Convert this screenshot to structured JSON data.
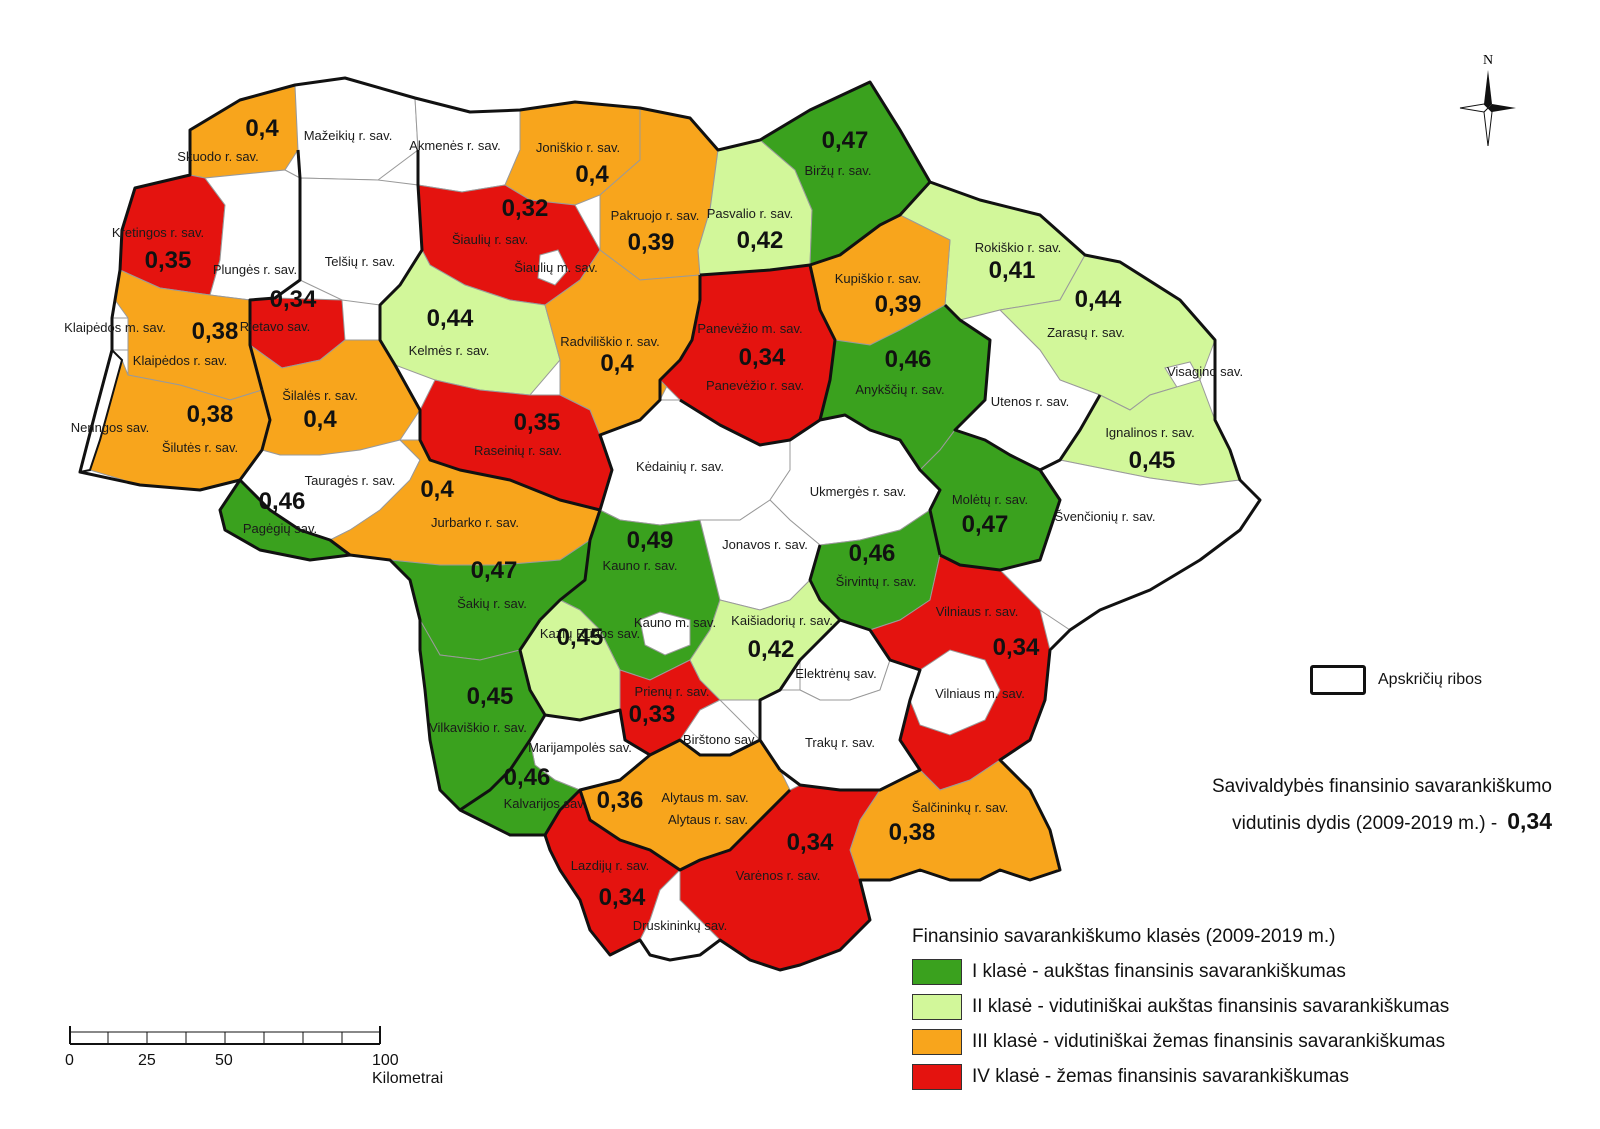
{
  "class_colors": {
    "I": "#3aa11e",
    "II": "#d2f79a",
    "III": "#f8a51c",
    "IV": "#e4130f",
    "none": "#ffffff"
  },
  "municipalities": [
    {
      "id": "skuodo",
      "name": "Skuodo r. sav.",
      "value": "0,4",
      "class": "III"
    },
    {
      "id": "mazeikiu",
      "name": "Mažeikių r. sav.",
      "value": "",
      "class": "none"
    },
    {
      "id": "akmenes",
      "name": "Akmenės r. sav.",
      "value": "",
      "class": "none"
    },
    {
      "id": "joniskio",
      "name": "Joniškio r. sav.",
      "value": "0,4",
      "class": "III"
    },
    {
      "id": "pakruojo",
      "name": "Pakruojo r. sav.",
      "value": "0,39",
      "class": "III"
    },
    {
      "id": "pasvalio",
      "name": "Pasvalio r. sav.",
      "value": "0,42",
      "class": "II"
    },
    {
      "id": "birzu",
      "name": "Biržų r. sav.",
      "value": "0,47",
      "class": "I"
    },
    {
      "id": "rokiskio",
      "name": "Rokiškio r. sav.",
      "value": "0,41",
      "class": "II"
    },
    {
      "id": "kupiskio",
      "name": "Kupiškio r. sav.",
      "value": "0,39",
      "class": "III"
    },
    {
      "id": "zarasu",
      "name": "Zarasų r. sav.",
      "value": "0,44",
      "class": "II"
    },
    {
      "id": "visagino",
      "name": "Visagino sav.",
      "value": "",
      "class": "none"
    },
    {
      "id": "kretingos",
      "name": "Kretingos r. sav.",
      "value": "0,35",
      "class": "IV"
    },
    {
      "id": "plunges",
      "name": "Plungės r. sav.",
      "value": "",
      "class": "none"
    },
    {
      "id": "telsiu",
      "name": "Telšių r. sav.",
      "value": "",
      "class": "none"
    },
    {
      "id": "siauliu_r",
      "name": "Šiaulių r. sav.",
      "value": "0,32",
      "class": "IV"
    },
    {
      "id": "siauliu_m",
      "name": "Šiaulių m. sav.",
      "value": "",
      "class": "none"
    },
    {
      "id": "rietavo",
      "name": "Rietavo sav.",
      "value": "0,34",
      "class": "IV"
    },
    {
      "id": "klaipedos_m",
      "name": "Klaipėdos m. sav.",
      "value": "",
      "class": "none"
    },
    {
      "id": "klaipedos_r",
      "name": "Klaipėdos r. sav.",
      "value": "0,38",
      "class": "III"
    },
    {
      "id": "kelmes",
      "name": "Kelmės r. sav.",
      "value": "0,44",
      "class": "II"
    },
    {
      "id": "radviliskio",
      "name": "Radviliškio r. sav.",
      "value": "0,4",
      "class": "III"
    },
    {
      "id": "panevezio_m",
      "name": "Panevėžio m. sav.",
      "value": "",
      "class": "none"
    },
    {
      "id": "panevezio_r",
      "name": "Panevėžio r. sav.",
      "value": "0,34",
      "class": "IV"
    },
    {
      "id": "anyksciu",
      "name": "Anykščių r. sav.",
      "value": "0,46",
      "class": "I"
    },
    {
      "id": "utenos",
      "name": "Utenos r. sav.",
      "value": "",
      "class": "none"
    },
    {
      "id": "ignalinos",
      "name": "Ignalinos r. sav.",
      "value": "0,45",
      "class": "II"
    },
    {
      "id": "neringos",
      "name": "Neringos sav.",
      "value": "",
      "class": "none"
    },
    {
      "id": "silutes",
      "name": "Šilutės r. sav.",
      "value": "0,38",
      "class": "III"
    },
    {
      "id": "silales",
      "name": "Šilalės r. sav.",
      "value": "0,4",
      "class": "III"
    },
    {
      "id": "raseiniu",
      "name": "Raseinių r. sav.",
      "value": "0,35",
      "class": "IV"
    },
    {
      "id": "kedainiu",
      "name": "Kėdainių r. sav.",
      "value": "",
      "class": "none"
    },
    {
      "id": "ukmerges",
      "name": "Ukmergės r. sav.",
      "value": "",
      "class": "none"
    },
    {
      "id": "moletu",
      "name": "Molėtų r. sav.",
      "value": "0,47",
      "class": "I"
    },
    {
      "id": "svencioniu",
      "name": "Švenčionių r. sav.",
      "value": "",
      "class": "none"
    },
    {
      "id": "taurages",
      "name": "Tauragės r. sav.",
      "value": "",
      "class": "none"
    },
    {
      "id": "jurbarko",
      "name": "Jurbarko r. sav.",
      "value": "0,4",
      "class": "III"
    },
    {
      "id": "pagegiu",
      "name": "Pagėgių sav.",
      "value": "0,46",
      "class": "I"
    },
    {
      "id": "kauno_r",
      "name": "Kauno r. sav.",
      "value": "0,49",
      "class": "I"
    },
    {
      "id": "jonavos",
      "name": "Jonavos r. sav.",
      "value": "",
      "class": "none"
    },
    {
      "id": "sirvintu",
      "name": "Širvintų r. sav.",
      "value": "0,46",
      "class": "I"
    },
    {
      "id": "sakiu",
      "name": "Šakių r. sav.",
      "value": "0,47",
      "class": "I"
    },
    {
      "id": "kauno_m",
      "name": "Kauno m. sav.",
      "value": "",
      "class": "none"
    },
    {
      "id": "kaisiadoriu",
      "name": "Kaišiadorių r. sav.",
      "value": "0,42",
      "class": "II"
    },
    {
      "id": "vilniaus_r",
      "name": "Vilniaus r. sav.",
      "value": "0,34",
      "class": "IV"
    },
    {
      "id": "kazlu_rudos",
      "name": "Kazlų Rūdos sav.",
      "value": "0,45",
      "class": "II"
    },
    {
      "id": "elektrenu",
      "name": "Elektrėnų sav.",
      "value": "",
      "class": "none"
    },
    {
      "id": "vilniaus_m",
      "name": "Vilniaus m. sav.",
      "value": "",
      "class": "none"
    },
    {
      "id": "vilkaviskio",
      "name": "Vilkaviškio r. sav.",
      "value": "0,45",
      "class": "I"
    },
    {
      "id": "prienu",
      "name": "Prienų r. sav.",
      "value": "0,33",
      "class": "IV"
    },
    {
      "id": "birstono",
      "name": "Birštono sav.",
      "value": "",
      "class": "none"
    },
    {
      "id": "marijampoles",
      "name": "Marijampolės sav.",
      "value": "",
      "class": "none"
    },
    {
      "id": "traku",
      "name": "Trakų r. sav.",
      "value": "",
      "class": "none"
    },
    {
      "id": "kalvarijos",
      "name": "Kalvarijos sav.",
      "value": "0,46",
      "class": "I"
    },
    {
      "id": "alytaus_m",
      "name": "Alytaus m. sav.",
      "value": "",
      "class": "none"
    },
    {
      "id": "alytaus_r",
      "name": "Alytaus r. sav.",
      "value": "0,36",
      "class": "III"
    },
    {
      "id": "salcininku",
      "name": "Šalčininkų r. sav.",
      "value": "0,38",
      "class": "III"
    },
    {
      "id": "lazdiju",
      "name": "Lazdijų r. sav.",
      "value": "0,34",
      "class": "IV"
    },
    {
      "id": "varenos",
      "name": "Varėnos r. sav.",
      "value": "0,34",
      "class": "IV"
    },
    {
      "id": "druskininku",
      "name": "Druskininkų sav.",
      "value": "",
      "class": "none"
    }
  ],
  "boundary_legend": "Apskričių ribos",
  "summary": {
    "line1": "Savivaldybės finansinio savarankiškumo",
    "line2": "vidutinis dydis (2009-2019 m.) -",
    "value": "0,34"
  },
  "legend": {
    "title": "Finansinio savarankiškumo klasės (2009-2019 m.)",
    "items": [
      {
        "class": "I",
        "label": "I klasė - aukštas finansinis savarankiškumas"
      },
      {
        "class": "II",
        "label": "II klasė - vidutiniškai aukštas finansinis savarankiškumas"
      },
      {
        "class": "III",
        "label": "III klasė  - vidutiniškai žemas finansinis savarankiškumas"
      },
      {
        "class": "IV",
        "label": "IV klasė - žemas finansinis savarankiškumas"
      }
    ]
  },
  "scale_bar": {
    "labels": [
      "0",
      "25",
      "50",
      "100 Kilometrai"
    ]
  },
  "north_label": "N"
}
